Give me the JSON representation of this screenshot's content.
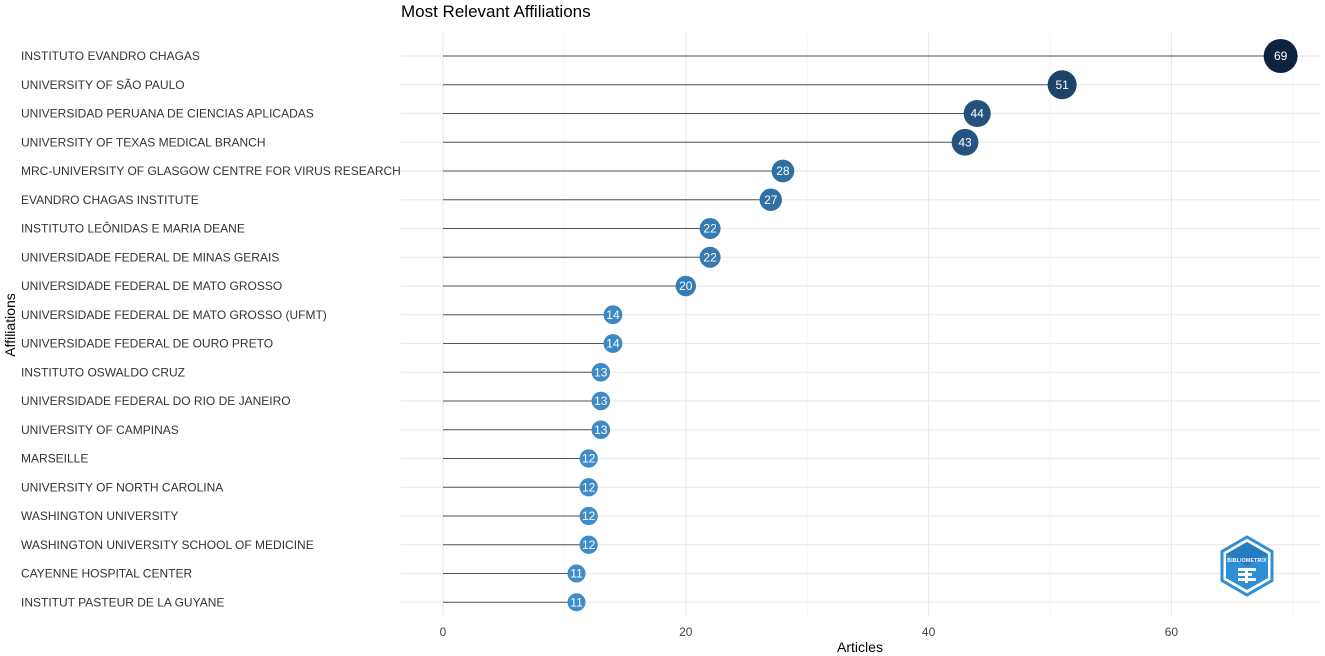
{
  "chart_data": {
    "type": "lollipop",
    "title": "Most Relevant Affiliations",
    "xlabel": "Articles",
    "ylabel": "Affiliations",
    "xlim": [
      0,
      70
    ],
    "xticks": [
      0,
      20,
      40,
      60
    ],
    "grid": true,
    "categories": [
      "INSTITUTO EVANDRO CHAGAS",
      "UNIVERSITY OF SÃO PAULO",
      "UNIVERSIDAD PERUANA DE CIENCIAS APLICADAS",
      "UNIVERSITY OF TEXAS MEDICAL BRANCH",
      "MRC-UNIVERSITY OF GLASGOW CENTRE FOR VIRUS RESEARCH",
      "EVANDRO CHAGAS INSTITUTE",
      "INSTITUTO LEÔNIDAS E MARIA DEANE",
      "UNIVERSIDADE FEDERAL DE MINAS GERAIS",
      "UNIVERSIDADE FEDERAL DE MATO GROSSO",
      "UNIVERSIDADE FEDERAL DE MATO GROSSO (UFMT)",
      "UNIVERSIDADE FEDERAL DE OURO PRETO",
      "INSTITUTO OSWALDO CRUZ",
      "UNIVERSIDADE FEDERAL DO RIO DE JANEIRO",
      "UNIVERSITY OF CAMPINAS",
      "MARSEILLE",
      "UNIVERSITY OF NORTH CAROLINA",
      "WASHINGTON UNIVERSITY",
      "WASHINGTON UNIVERSITY SCHOOL OF MEDICINE",
      "CAYENNE HOSPITAL CENTER",
      "INSTITUT PASTEUR DE LA GUYANE"
    ],
    "values": [
      69,
      51,
      44,
      43,
      28,
      27,
      22,
      22,
      20,
      14,
      14,
      13,
      13,
      13,
      12,
      12,
      12,
      12,
      11,
      11
    ],
    "colors": {
      "low": "#3f8ecb",
      "high": "#0c2340",
      "stem": "#555555",
      "grid": "#ebebeb"
    }
  },
  "logo": {
    "text": "BIBLIOMETRIX",
    "color": "#2f8fd6"
  }
}
